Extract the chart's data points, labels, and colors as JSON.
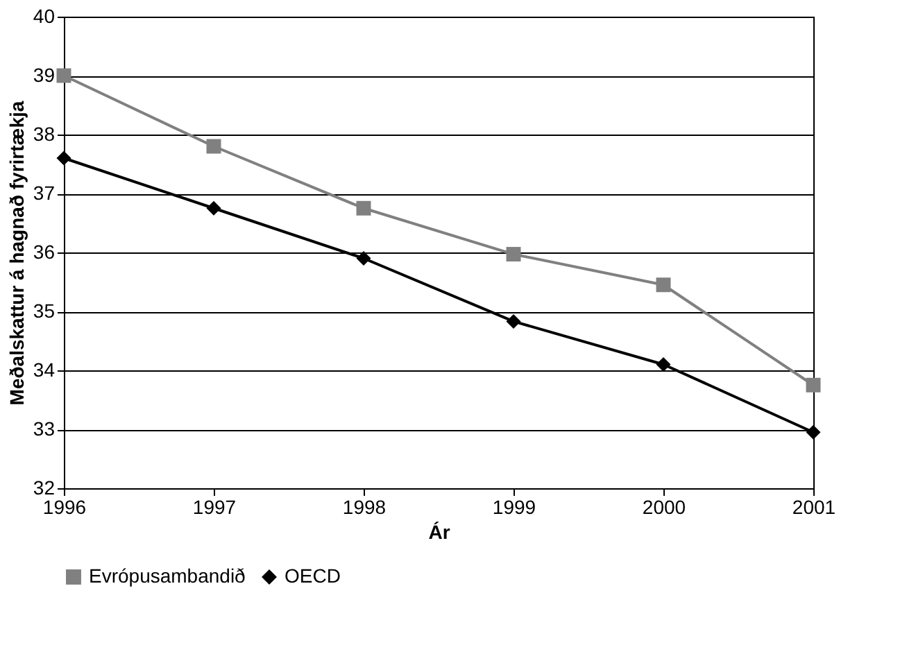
{
  "chart_data": {
    "type": "line",
    "xlabel": "Ár",
    "ylabel": "Meðalskattur á hagnað fyrirtækja",
    "x": [
      1996,
      1997,
      1998,
      1999,
      2000,
      2001
    ],
    "series": [
      {
        "name": "Evrópusambandið",
        "color": "#808080",
        "marker": "square",
        "values": [
          39.0,
          37.8,
          36.75,
          35.97,
          35.45,
          33.75
        ]
      },
      {
        "name": "OECD",
        "color": "#000000",
        "marker": "diamond",
        "values": [
          37.6,
          36.75,
          35.9,
          34.83,
          34.1,
          32.95
        ]
      }
    ],
    "xlim": [
      1996,
      2001
    ],
    "xticks": [
      1996,
      1997,
      1998,
      1999,
      2000,
      2001
    ],
    "ylim": [
      32,
      40
    ],
    "yticks": [
      32,
      33,
      34,
      35,
      36,
      37,
      38,
      39,
      40
    ],
    "grid": "y",
    "legend": "bottom",
    "line_style": "solid"
  }
}
